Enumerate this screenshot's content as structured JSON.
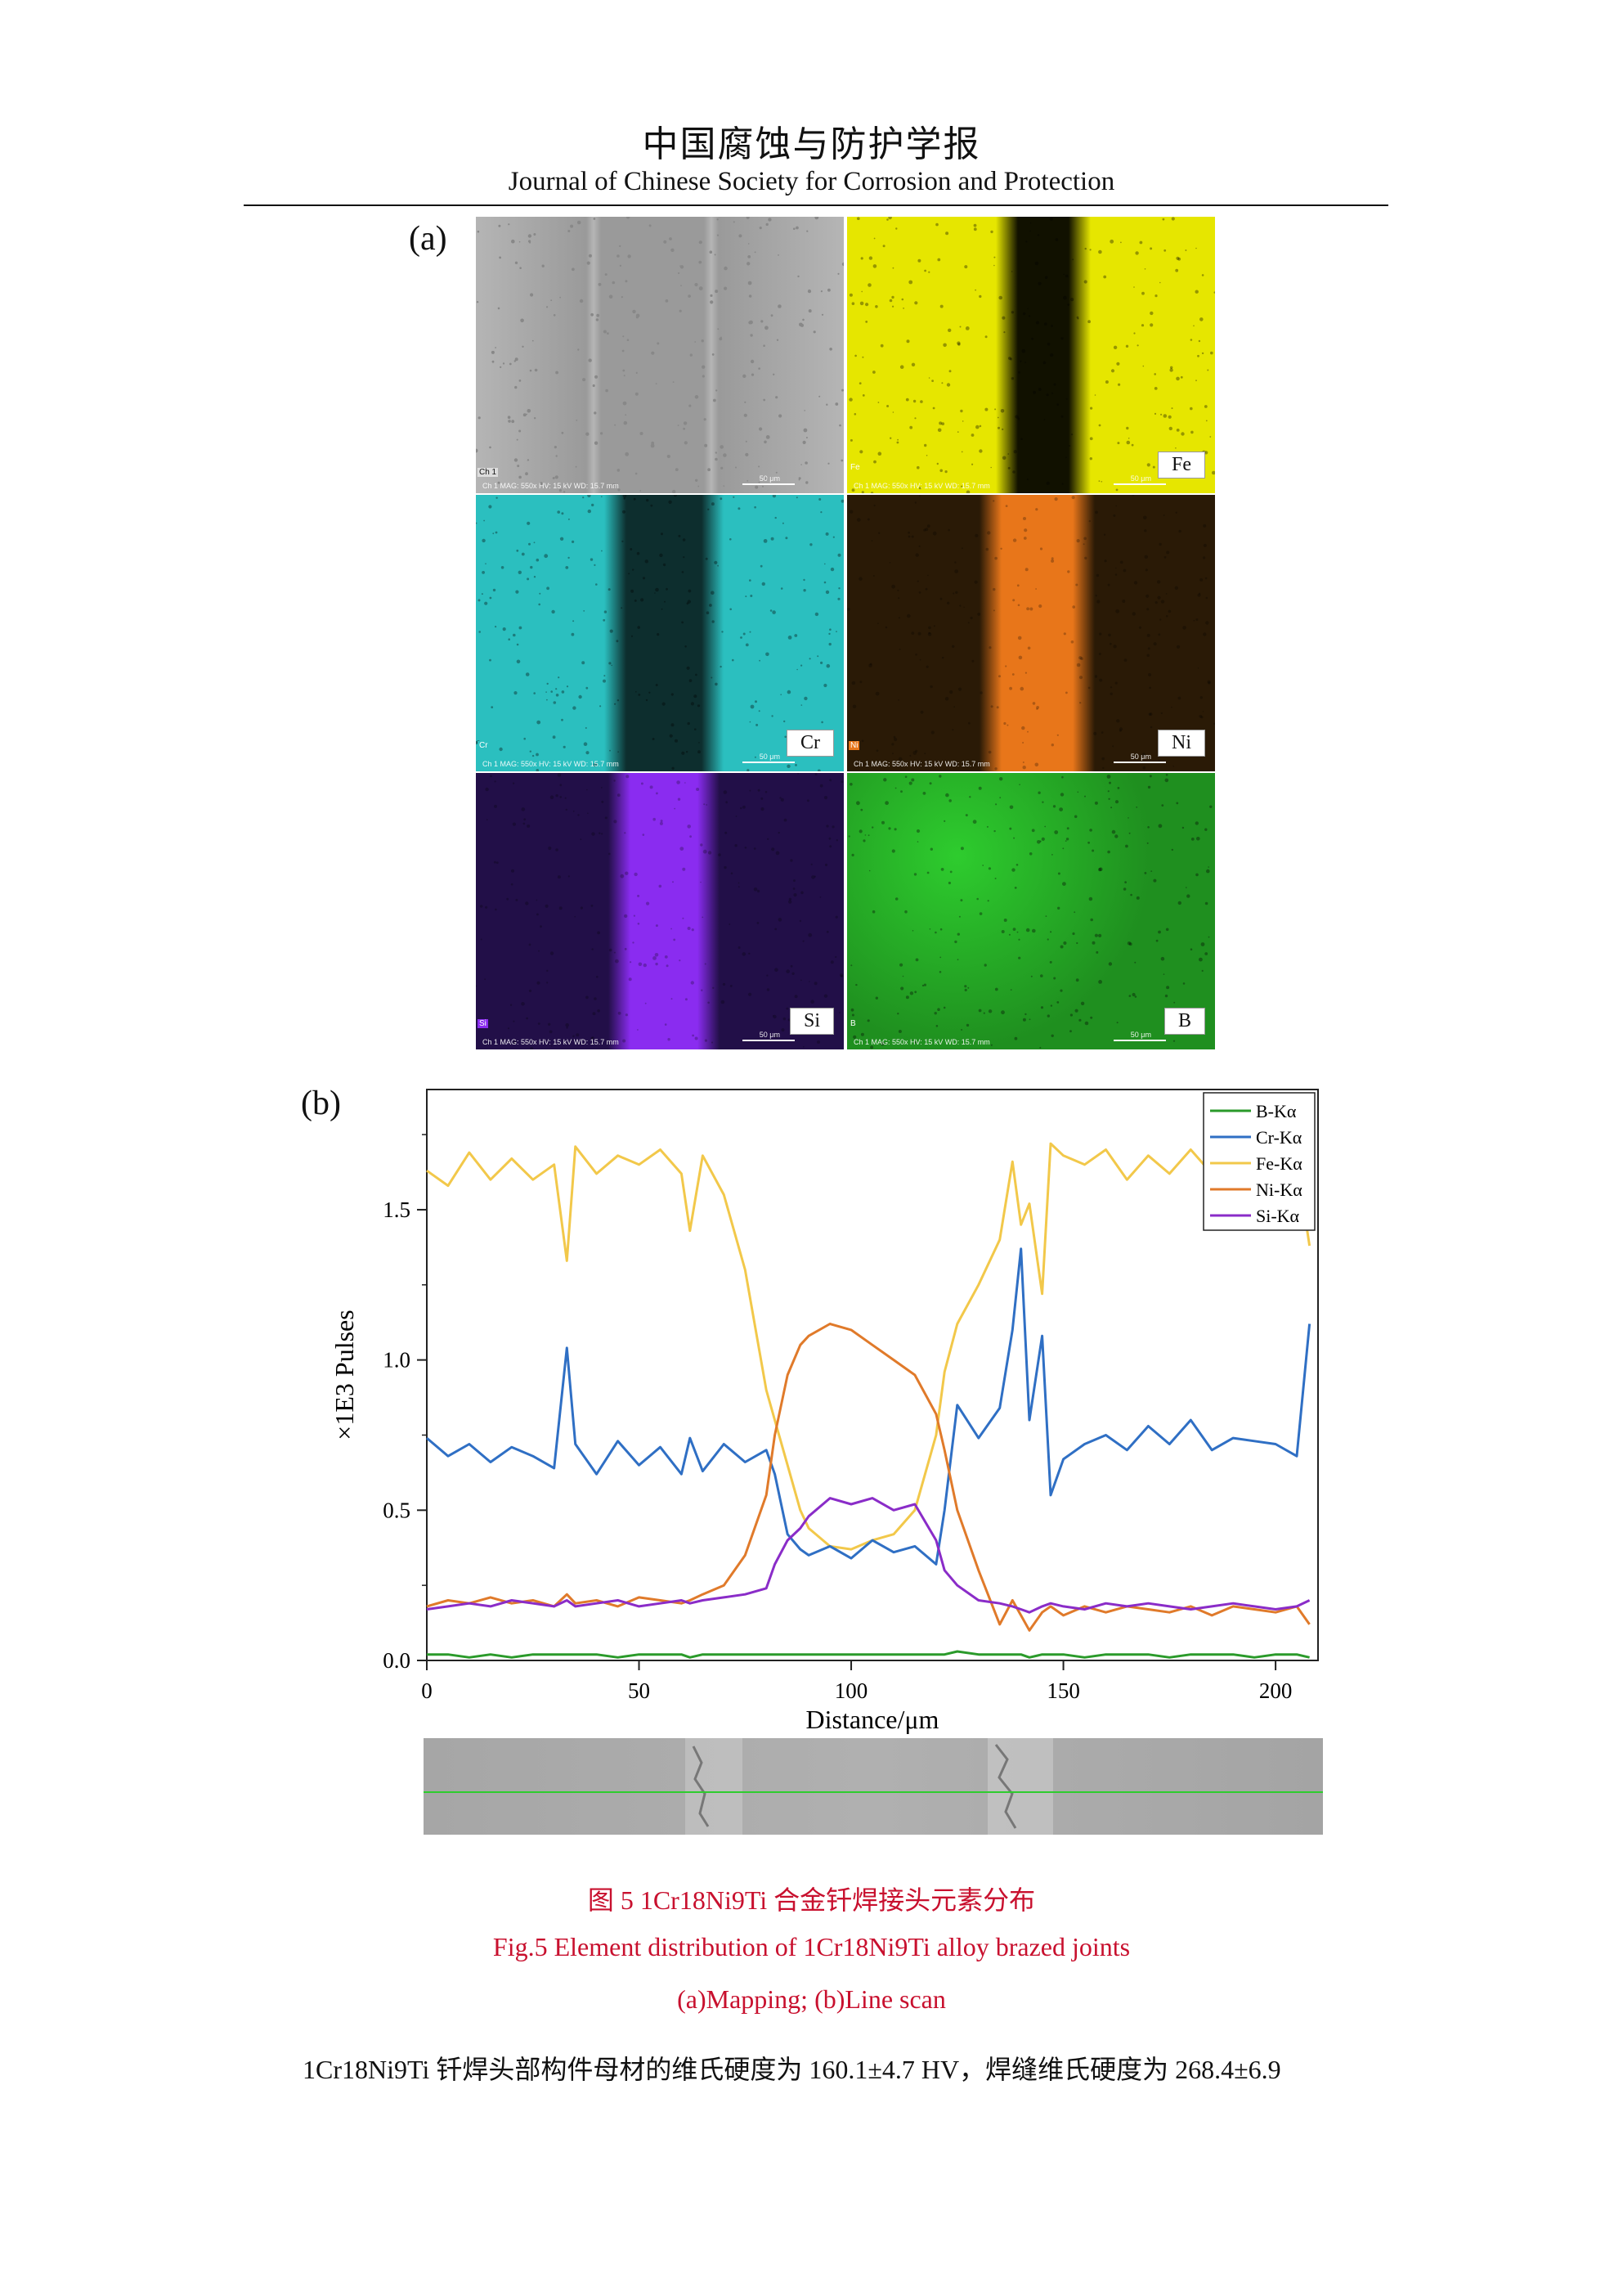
{
  "header": {
    "journal_cn": "中国腐蚀与防护学报",
    "journal_en": "Journal of Chinese Society for Corrosion and Protection"
  },
  "figure": {
    "panel_a_label": "(a)",
    "panel_b_label": "(b)",
    "maps": [
      {
        "id": "sem",
        "label": "",
        "tag": "",
        "corner": "Ch 1",
        "meta": "Ch 1  MAG: 550x  HV: 15 kV  WD: 15.7 mm",
        "colors": [
          "#9a9a9a",
          "#b5b5b5"
        ]
      },
      {
        "id": "fe",
        "label": "Fe",
        "tag": "Fe",
        "corner": "",
        "meta": "Ch 1  MAG: 550x  HV: 15 kV  WD: 15.7 mm",
        "colors": [
          "#e6e600",
          "#111100"
        ]
      },
      {
        "id": "cr",
        "label": "Cr",
        "tag": "Cr",
        "corner": "",
        "meta": "Ch 1  MAG: 550x  HV: 15 kV  WD: 15.7 mm",
        "colors": [
          "#2bbfbf",
          "#0d2e2e"
        ]
      },
      {
        "id": "ni",
        "label": "Ni",
        "tag": "Ni",
        "corner": "",
        "meta": "Ch 1  MAG: 550x  HV: 15 kV  WD: 15.7 mm",
        "colors": [
          "#2a1a06",
          "#e8761a"
        ]
      },
      {
        "id": "si",
        "label": "Si",
        "tag": "Si",
        "corner": "",
        "meta": "Ch 1  MAG: 550x  HV: 15 kV  WD: 15.7 mm",
        "colors": [
          "#220f48",
          "#8a2cf0"
        ]
      },
      {
        "id": "b",
        "label": "B",
        "tag": "B",
        "corner": "",
        "meta": "Ch 1  MAG: 550x  HV: 15 kV  WD: 15.7 mm",
        "colors": [
          "#1f8f1f",
          "#2ecc2e"
        ]
      }
    ],
    "scale_bar_label": "50 μm",
    "caption_cn": "图 5 1Cr18Ni9Ti 合金钎焊接头元素分布",
    "caption_en": "Fig.5 Element distribution of 1Cr18Ni9Ti alloy brazed joints",
    "caption_sub": "(a)Mapping; (b)Line scan"
  },
  "chart_data": {
    "type": "line",
    "xlabel": "Distance/μm",
    "ylabel": "×1E3 Pulses",
    "xlim": [
      0,
      210
    ],
    "ylim": [
      0,
      1.9
    ],
    "xticks": [
      0,
      50,
      100,
      150,
      200
    ],
    "yticks": [
      0.0,
      0.5,
      1.0,
      1.5
    ],
    "ytick_labels": [
      "0.0",
      "0.5",
      "1.0",
      "1.5"
    ],
    "legend_position": "top-right",
    "x": [
      0,
      5,
      10,
      15,
      20,
      25,
      30,
      33,
      35,
      40,
      45,
      50,
      55,
      60,
      62,
      65,
      70,
      75,
      80,
      82,
      85,
      88,
      90,
      95,
      100,
      105,
      110,
      115,
      120,
      122,
      125,
      130,
      135,
      138,
      140,
      142,
      145,
      147,
      150,
      155,
      160,
      165,
      170,
      175,
      180,
      185,
      190,
      195,
      200,
      205,
      208
    ],
    "series": [
      {
        "name": "B-Kα",
        "color": "#2a9a2a",
        "values": [
          0.02,
          0.02,
          0.01,
          0.02,
          0.01,
          0.02,
          0.02,
          0.02,
          0.02,
          0.02,
          0.01,
          0.02,
          0.02,
          0.02,
          0.01,
          0.02,
          0.02,
          0.02,
          0.02,
          0.02,
          0.02,
          0.02,
          0.02,
          0.02,
          0.02,
          0.02,
          0.02,
          0.02,
          0.02,
          0.02,
          0.03,
          0.02,
          0.02,
          0.02,
          0.02,
          0.01,
          0.02,
          0.02,
          0.02,
          0.01,
          0.02,
          0.02,
          0.02,
          0.01,
          0.02,
          0.02,
          0.02,
          0.01,
          0.02,
          0.02,
          0.01
        ]
      },
      {
        "name": "Cr-Kα",
        "color": "#2f6fc4",
        "values": [
          0.74,
          0.68,
          0.72,
          0.66,
          0.71,
          0.68,
          0.64,
          1.04,
          0.72,
          0.62,
          0.73,
          0.65,
          0.71,
          0.62,
          0.74,
          0.63,
          0.72,
          0.66,
          0.7,
          0.62,
          0.42,
          0.37,
          0.35,
          0.38,
          0.34,
          0.4,
          0.36,
          0.38,
          0.32,
          0.5,
          0.85,
          0.74,
          0.84,
          1.1,
          1.37,
          0.8,
          1.08,
          0.55,
          0.67,
          0.72,
          0.75,
          0.7,
          0.78,
          0.72,
          0.8,
          0.7,
          0.74,
          0.73,
          0.72,
          0.68,
          1.12
        ]
      },
      {
        "name": "Fe-Kα",
        "color": "#f2c84a",
        "values": [
          1.63,
          1.58,
          1.69,
          1.6,
          1.67,
          1.6,
          1.65,
          1.33,
          1.71,
          1.62,
          1.68,
          1.65,
          1.7,
          1.62,
          1.43,
          1.68,
          1.55,
          1.3,
          0.9,
          0.8,
          0.65,
          0.5,
          0.44,
          0.38,
          0.37,
          0.4,
          0.42,
          0.5,
          0.75,
          0.96,
          1.12,
          1.25,
          1.4,
          1.66,
          1.45,
          1.52,
          1.22,
          1.72,
          1.68,
          1.65,
          1.7,
          1.6,
          1.68,
          1.62,
          1.7,
          1.62,
          1.68,
          1.65,
          1.58,
          1.66,
          1.38
        ]
      },
      {
        "name": "Ni-Kα",
        "color": "#e07a2a",
        "values": [
          0.18,
          0.2,
          0.19,
          0.21,
          0.19,
          0.2,
          0.18,
          0.22,
          0.19,
          0.2,
          0.18,
          0.21,
          0.2,
          0.19,
          0.2,
          0.22,
          0.25,
          0.35,
          0.55,
          0.75,
          0.95,
          1.05,
          1.08,
          1.12,
          1.1,
          1.05,
          1.0,
          0.95,
          0.82,
          0.7,
          0.5,
          0.3,
          0.12,
          0.2,
          0.15,
          0.1,
          0.16,
          0.18,
          0.15,
          0.18,
          0.16,
          0.18,
          0.17,
          0.16,
          0.18,
          0.15,
          0.18,
          0.17,
          0.16,
          0.18,
          0.12
        ]
      },
      {
        "name": "Si-Kα",
        "color": "#8a2cc8",
        "values": [
          0.17,
          0.18,
          0.19,
          0.18,
          0.2,
          0.19,
          0.18,
          0.2,
          0.18,
          0.19,
          0.2,
          0.18,
          0.19,
          0.2,
          0.19,
          0.2,
          0.21,
          0.22,
          0.24,
          0.32,
          0.4,
          0.44,
          0.48,
          0.54,
          0.52,
          0.54,
          0.5,
          0.52,
          0.4,
          0.3,
          0.25,
          0.2,
          0.19,
          0.18,
          0.17,
          0.16,
          0.18,
          0.19,
          0.18,
          0.17,
          0.19,
          0.18,
          0.19,
          0.18,
          0.17,
          0.18,
          0.19,
          0.18,
          0.17,
          0.18,
          0.2
        ]
      }
    ]
  },
  "body_text": "1Cr18Ni9Ti 钎焊头部构件母材的维氏硬度为 160.1±4.7 HV，焊缝维氏硬度为 268.4±6.9"
}
